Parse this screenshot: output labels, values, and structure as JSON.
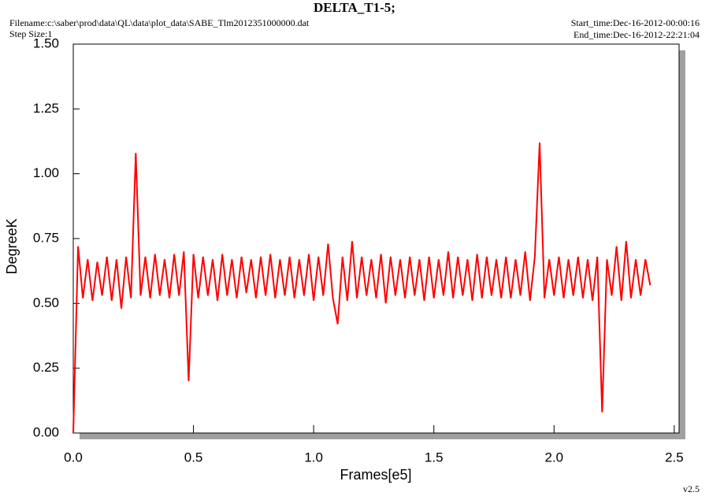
{
  "chart_data": {
    "type": "line",
    "title": "DELTA_T1-5;",
    "filename": "Filename:c:\\saber\\prod\\data\\QL\\data\\plot_data\\SABE_Tlm2012351000000.dat",
    "step_size": "Step Size:1",
    "start_time": "Start_time:Dec-16-2012-00:00:16",
    "end_time": "End_time:Dec-16-2012-22:21:04",
    "version": "v2.5",
    "x_label": "Frames[e5]",
    "y_label": "DegreeK",
    "xlim": [
      0,
      2.52
    ],
    "ylim": [
      0,
      1.5
    ],
    "xticks": [
      {
        "value": 0,
        "label": "0.0"
      },
      {
        "value": 0.5,
        "label": "0.5"
      },
      {
        "value": 1,
        "label": "1.0"
      },
      {
        "value": 1.5,
        "label": "1.5"
      },
      {
        "value": 2,
        "label": "2.0"
      },
      {
        "value": 2.5,
        "label": "2.5"
      }
    ],
    "yticks": [
      {
        "value": 0,
        "label": "0.00"
      },
      {
        "value": 0.25,
        "label": "0.25"
      },
      {
        "value": 0.5,
        "label": "0.50"
      },
      {
        "value": 0.75,
        "label": "0.75"
      },
      {
        "value": 1,
        "label": "1.00"
      },
      {
        "value": 1.25,
        "label": "1.25"
      },
      {
        "value": 1.5,
        "label": "1.50"
      }
    ],
    "grid": false,
    "x": [
      0,
      0.02,
      0.04,
      0.06,
      0.08,
      0.1,
      0.12,
      0.14,
      0.16,
      0.18,
      0.2,
      0.22,
      0.24,
      0.26,
      0.28,
      0.3,
      0.32,
      0.34,
      0.36,
      0.38,
      0.4,
      0.42,
      0.44,
      0.46,
      0.48,
      0.5,
      0.52,
      0.54,
      0.56,
      0.58,
      0.6,
      0.62,
      0.64,
      0.66,
      0.68,
      0.7,
      0.72,
      0.74,
      0.76,
      0.78,
      0.8,
      0.82,
      0.84,
      0.86,
      0.88,
      0.9,
      0.92,
      0.94,
      0.96,
      0.98,
      1,
      1.02,
      1.04,
      1.06,
      1.08,
      1.1,
      1.12,
      1.14,
      1.16,
      1.18,
      1.2,
      1.22,
      1.24,
      1.26,
      1.28,
      1.3,
      1.32,
      1.34,
      1.36,
      1.38,
      1.4,
      1.42,
      1.44,
      1.46,
      1.48,
      1.5,
      1.52,
      1.54,
      1.56,
      1.58,
      1.6,
      1.62,
      1.64,
      1.66,
      1.68,
      1.7,
      1.72,
      1.74,
      1.76,
      1.78,
      1.8,
      1.82,
      1.84,
      1.86,
      1.88,
      1.9,
      1.92,
      1.94,
      1.96,
      1.98,
      2,
      2.02,
      2.04,
      2.06,
      2.08,
      2.1,
      2.12,
      2.14,
      2.16,
      2.18,
      2.2,
      2.22,
      2.24,
      2.26,
      2.28,
      2.3,
      2.32,
      2.34,
      2.36,
      2.38,
      2.4
    ],
    "series": [
      {
        "color": "#ff0000",
        "values": [
          0,
          0.72,
          0.52,
          0.67,
          0.51,
          0.66,
          0.53,
          0.68,
          0.51,
          0.67,
          0.48,
          0.68,
          0.52,
          1.08,
          0.53,
          0.68,
          0.52,
          0.69,
          0.53,
          0.67,
          0.52,
          0.69,
          0.53,
          0.7,
          0.2,
          0.69,
          0.52,
          0.68,
          0.53,
          0.67,
          0.51,
          0.69,
          0.53,
          0.67,
          0.52,
          0.68,
          0.54,
          0.67,
          0.52,
          0.68,
          0.53,
          0.69,
          0.52,
          0.67,
          0.53,
          0.68,
          0.52,
          0.67,
          0.53,
          0.69,
          0.51,
          0.68,
          0.53,
          0.73,
          0.52,
          0.42,
          0.68,
          0.51,
          0.74,
          0.52,
          0.68,
          0.53,
          0.67,
          0.52,
          0.69,
          0.5,
          0.68,
          0.53,
          0.67,
          0.52,
          0.68,
          0.53,
          0.67,
          0.51,
          0.68,
          0.52,
          0.67,
          0.53,
          0.7,
          0.52,
          0.68,
          0.53,
          0.67,
          0.51,
          0.69,
          0.52,
          0.68,
          0.53,
          0.67,
          0.52,
          0.68,
          0.52,
          0.67,
          0.53,
          0.7,
          0.51,
          0.68,
          1.12,
          0.52,
          0.67,
          0.53,
          0.68,
          0.52,
          0.67,
          0.53,
          0.68,
          0.52,
          0.67,
          0.51,
          0.68,
          0.08,
          0.67,
          0.53,
          0.72,
          0.51,
          0.74,
          0.52,
          0.67,
          0.53,
          0.67,
          0.57
        ]
      }
    ]
  }
}
